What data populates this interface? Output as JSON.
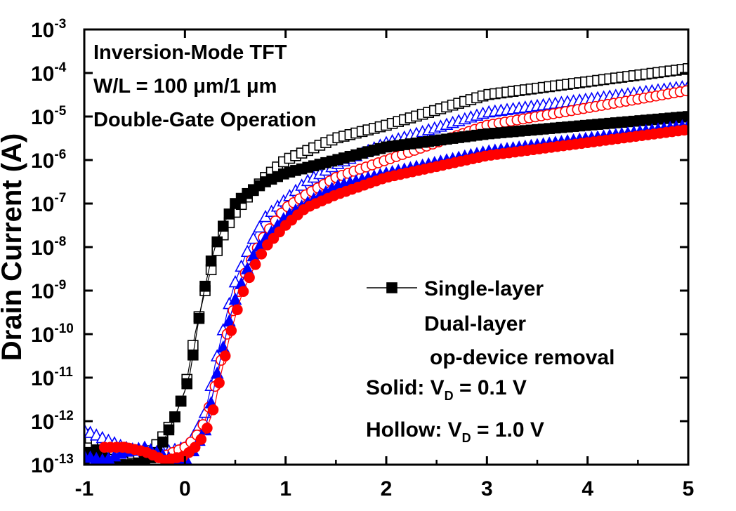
{
  "chart_data": {
    "type": "scatter",
    "ylabel": "Drain Current (A)",
    "xlabel": "",
    "xlim": [
      -1,
      5
    ],
    "ylim_exponent": [
      -13,
      -3
    ],
    "y_scale": "log",
    "x_ticks": [
      "-1",
      "0",
      "1",
      "2",
      "3",
      "4",
      "5"
    ],
    "y_ticks": [
      {
        "base": "10",
        "exp": "-3"
      },
      {
        "base": "10",
        "exp": "-4"
      },
      {
        "base": "10",
        "exp": "-5"
      },
      {
        "base": "10",
        "exp": "-6"
      },
      {
        "base": "10",
        "exp": "-7"
      },
      {
        "base": "10",
        "exp": "-8"
      },
      {
        "base": "10",
        "exp": "-9"
      },
      {
        "base": "10",
        "exp": "-10"
      },
      {
        "base": "10",
        "exp": "-11"
      },
      {
        "base": "10",
        "exp": "-12"
      },
      {
        "base": "10",
        "exp": "-13"
      }
    ],
    "annotations": [
      "Inversion-Mode TFT",
      "W/L = 100 μm/1 μm",
      "Double-Gate Operation"
    ],
    "bias_notes": [
      {
        "prefix": "Solid: V",
        "sub": "D",
        "suffix": " = 0.1 V"
      },
      {
        "prefix": "Hollow: V",
        "sub": "D",
        "suffix": " = 1.0 V"
      }
    ],
    "legend": {
      "placement": "lower-right",
      "entries": [
        {
          "label": "Single-layer",
          "color": "#000000",
          "marker": "square"
        },
        {
          "label": "Dual-layer",
          "color": "#0000ff",
          "marker": "triangle"
        },
        {
          "label": "op-device removal",
          "color": "#ff0000",
          "marker": "circle"
        }
      ]
    },
    "series": [
      {
        "name": "Single-layer",
        "bias": "0.1 V",
        "color": "#000000",
        "marker": "square",
        "filled": true,
        "x": [
          -1.0,
          -0.9,
          -0.8,
          -0.7,
          -0.5,
          -0.3,
          -0.2,
          -0.1,
          0.0,
          0.05,
          0.1,
          0.15,
          0.2,
          0.25,
          0.3,
          0.35,
          0.4,
          0.5,
          0.6,
          0.8,
          1.0,
          1.5,
          2.0,
          3.0,
          4.0,
          5.0
        ],
        "logy": [
          -12.9,
          -12.6,
          -12.9,
          -13.0,
          -13.0,
          -12.8,
          -12.4,
          -11.9,
          -11.3,
          -10.9,
          -10.2,
          -9.5,
          -8.9,
          -8.4,
          -8.0,
          -7.7,
          -7.4,
          -7.0,
          -6.8,
          -6.5,
          -6.3,
          -6.0,
          -5.7,
          -5.4,
          -5.2,
          -5.0
        ]
      },
      {
        "name": "Single-layer",
        "bias": "1.0 V",
        "color": "#000000",
        "marker": "square",
        "filled": false,
        "x": [
          -1.0,
          -0.8,
          -0.6,
          -0.4,
          -0.3,
          -0.2,
          -0.1,
          0.0,
          0.1,
          0.15,
          0.2,
          0.25,
          0.3,
          0.4,
          0.5,
          0.6,
          0.8,
          1.0,
          1.5,
          2.0,
          3.0,
          4.0,
          5.0
        ],
        "logy": [
          -12.3,
          -12.6,
          -12.7,
          -12.8,
          -12.6,
          -12.3,
          -11.9,
          -11.3,
          -10.0,
          -9.5,
          -9.0,
          -8.6,
          -8.2,
          -7.6,
          -7.2,
          -6.9,
          -6.4,
          -6.0,
          -5.5,
          -5.2,
          -4.5,
          -4.2,
          -3.9
        ]
      },
      {
        "name": "Dual-layer",
        "bias": "0.1 V",
        "color": "#0000ff",
        "marker": "triangle",
        "filled": true,
        "x": [
          -1.0,
          -0.8,
          -0.6,
          -0.4,
          -0.2,
          0.0,
          0.1,
          0.2,
          0.25,
          0.3,
          0.35,
          0.4,
          0.45,
          0.5,
          0.6,
          0.7,
          0.8,
          1.0,
          1.2,
          1.5,
          2.0,
          3.0,
          4.0,
          5.0
        ],
        "logy": [
          -12.8,
          -12.9,
          -12.7,
          -12.6,
          -12.8,
          -13.0,
          -12.6,
          -12.2,
          -11.7,
          -11.1,
          -10.6,
          -10.1,
          -9.6,
          -9.2,
          -8.6,
          -8.1,
          -7.8,
          -7.3,
          -7.0,
          -6.6,
          -6.3,
          -5.8,
          -5.5,
          -5.2
        ]
      },
      {
        "name": "Dual-layer",
        "bias": "1.0 V",
        "color": "#0000ff",
        "marker": "triangle",
        "filled": false,
        "x": [
          -1.0,
          -0.8,
          -0.6,
          -0.4,
          -0.2,
          0.0,
          0.1,
          0.2,
          0.25,
          0.3,
          0.35,
          0.4,
          0.45,
          0.5,
          0.6,
          0.7,
          0.8,
          1.0,
          1.2,
          1.5,
          2.0,
          3.0,
          4.0,
          5.0
        ],
        "logy": [
          -12.2,
          -12.4,
          -12.6,
          -12.7,
          -12.7,
          -12.6,
          -12.3,
          -11.8,
          -11.3,
          -10.7,
          -10.2,
          -9.7,
          -9.2,
          -8.8,
          -8.2,
          -7.7,
          -7.3,
          -6.9,
          -6.5,
          -6.1,
          -5.6,
          -4.9,
          -4.6,
          -4.3
        ]
      },
      {
        "name": "op-device removal",
        "bias": "0.1 V",
        "color": "#ff0000",
        "marker": "circle",
        "filled": true,
        "x": [
          -0.8,
          -0.6,
          -0.4,
          -0.2,
          0.0,
          0.1,
          0.2,
          0.3,
          0.35,
          0.4,
          0.45,
          0.5,
          0.55,
          0.6,
          0.7,
          0.8,
          1.0,
          1.2,
          1.5,
          2.0,
          3.0,
          4.0,
          5.0
        ],
        "logy": [
          -12.6,
          -12.6,
          -12.7,
          -12.9,
          -12.8,
          -12.6,
          -12.3,
          -11.6,
          -11.0,
          -10.5,
          -10.0,
          -9.6,
          -9.2,
          -8.9,
          -8.4,
          -8.0,
          -7.5,
          -7.1,
          -6.8,
          -6.4,
          -5.9,
          -5.6,
          -5.3
        ]
      },
      {
        "name": "op-device removal",
        "bias": "1.0 V",
        "color": "#ff0000",
        "marker": "circle",
        "filled": false,
        "x": [
          -0.6,
          -0.4,
          -0.2,
          0.0,
          0.1,
          0.2,
          0.3,
          0.35,
          0.4,
          0.45,
          0.5,
          0.6,
          0.7,
          0.8,
          1.0,
          1.2,
          1.5,
          2.0,
          3.0,
          4.0,
          5.0
        ],
        "logy": [
          -12.6,
          -12.7,
          -12.8,
          -12.6,
          -12.4,
          -12.0,
          -11.2,
          -10.7,
          -10.2,
          -9.7,
          -9.3,
          -8.6,
          -8.1,
          -7.7,
          -7.1,
          -6.8,
          -6.4,
          -6.0,
          -5.2,
          -4.8,
          -4.4
        ]
      }
    ]
  }
}
